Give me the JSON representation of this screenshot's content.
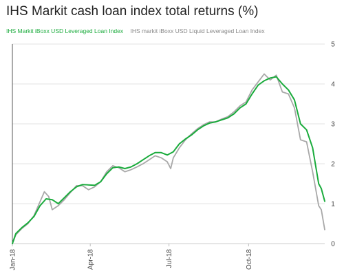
{
  "chart_data": {
    "type": "line",
    "title": "IHS Markit cash loan index total returns (%)",
    "xlabel": "",
    "ylabel": "",
    "ylim": [
      0,
      5
    ],
    "yticks": [
      "0",
      "1",
      "2",
      "3",
      "4",
      "5"
    ],
    "x_range": [
      "2018-01-01",
      "2018-12-28"
    ],
    "xticks": [
      {
        "label": "Jan-18",
        "date": "2018-01-01"
      },
      {
        "label": "Apr-18",
        "date": "2018-04-01"
      },
      {
        "label": "Jul-18",
        "date": "2018-07-01"
      },
      {
        "label": "Oct-18",
        "date": "2018-10-01"
      }
    ],
    "grid": "horizontal",
    "legend_position": "top-left",
    "series": [
      {
        "name": "IHS Markit iBoxx USD Leveraged Loan Index",
        "color": "#1aab3c",
        "points": [
          [
            "2018-01-01",
            0.0
          ],
          [
            "2018-01-05",
            0.25
          ],
          [
            "2018-01-12",
            0.4
          ],
          [
            "2018-01-19",
            0.52
          ],
          [
            "2018-01-26",
            0.68
          ],
          [
            "2018-02-02",
            0.95
          ],
          [
            "2018-02-09",
            1.12
          ],
          [
            "2018-02-16",
            1.1
          ],
          [
            "2018-02-23",
            1.0
          ],
          [
            "2018-03-02",
            1.15
          ],
          [
            "2018-03-09",
            1.3
          ],
          [
            "2018-03-16",
            1.42
          ],
          [
            "2018-03-23",
            1.48
          ],
          [
            "2018-03-30",
            1.47
          ],
          [
            "2018-04-06",
            1.46
          ],
          [
            "2018-04-13",
            1.55
          ],
          [
            "2018-04-20",
            1.75
          ],
          [
            "2018-04-27",
            1.9
          ],
          [
            "2018-05-04",
            1.92
          ],
          [
            "2018-05-11",
            1.88
          ],
          [
            "2018-05-18",
            1.92
          ],
          [
            "2018-05-25",
            2.0
          ],
          [
            "2018-06-01",
            2.1
          ],
          [
            "2018-06-08",
            2.2
          ],
          [
            "2018-06-15",
            2.28
          ],
          [
            "2018-06-22",
            2.28
          ],
          [
            "2018-06-29",
            2.22
          ],
          [
            "2018-07-06",
            2.3
          ],
          [
            "2018-07-13",
            2.5
          ],
          [
            "2018-07-20",
            2.62
          ],
          [
            "2018-07-27",
            2.72
          ],
          [
            "2018-08-03",
            2.85
          ],
          [
            "2018-08-10",
            2.95
          ],
          [
            "2018-08-17",
            3.02
          ],
          [
            "2018-08-24",
            3.05
          ],
          [
            "2018-08-31",
            3.1
          ],
          [
            "2018-09-07",
            3.15
          ],
          [
            "2018-09-14",
            3.25
          ],
          [
            "2018-09-21",
            3.4
          ],
          [
            "2018-09-28",
            3.5
          ],
          [
            "2018-10-05",
            3.75
          ],
          [
            "2018-10-12",
            3.97
          ],
          [
            "2018-10-19",
            4.08
          ],
          [
            "2018-10-26",
            4.15
          ],
          [
            "2018-11-02",
            4.18
          ],
          [
            "2018-11-09",
            4.0
          ],
          [
            "2018-11-16",
            3.85
          ],
          [
            "2018-11-23",
            3.6
          ],
          [
            "2018-11-30",
            3.0
          ],
          [
            "2018-12-07",
            2.85
          ],
          [
            "2018-12-14",
            2.4
          ],
          [
            "2018-12-21",
            1.5
          ],
          [
            "2018-12-24",
            1.38
          ],
          [
            "2018-12-28",
            1.06
          ]
        ]
      },
      {
        "name": "IHS markit iBoxx USD Liquid Leveraged Loan Index",
        "color": "#a8a8a8",
        "points": [
          [
            "2018-01-01",
            0.0
          ],
          [
            "2018-01-05",
            0.22
          ],
          [
            "2018-01-12",
            0.38
          ],
          [
            "2018-01-19",
            0.5
          ],
          [
            "2018-01-26",
            0.7
          ],
          [
            "2018-02-02",
            1.05
          ],
          [
            "2018-02-07",
            1.3
          ],
          [
            "2018-02-12",
            1.18
          ],
          [
            "2018-02-16",
            0.85
          ],
          [
            "2018-02-23",
            0.95
          ],
          [
            "2018-03-02",
            1.1
          ],
          [
            "2018-03-09",
            1.28
          ],
          [
            "2018-03-16",
            1.45
          ],
          [
            "2018-03-23",
            1.45
          ],
          [
            "2018-03-30",
            1.35
          ],
          [
            "2018-04-06",
            1.42
          ],
          [
            "2018-04-13",
            1.55
          ],
          [
            "2018-04-20",
            1.8
          ],
          [
            "2018-04-27",
            1.95
          ],
          [
            "2018-05-04",
            1.9
          ],
          [
            "2018-05-11",
            1.8
          ],
          [
            "2018-05-18",
            1.85
          ],
          [
            "2018-05-25",
            1.92
          ],
          [
            "2018-06-01",
            2.0
          ],
          [
            "2018-06-08",
            2.1
          ],
          [
            "2018-06-15",
            2.2
          ],
          [
            "2018-06-22",
            2.15
          ],
          [
            "2018-06-29",
            2.05
          ],
          [
            "2018-07-03",
            1.88
          ],
          [
            "2018-07-06",
            2.15
          ],
          [
            "2018-07-13",
            2.4
          ],
          [
            "2018-07-20",
            2.6
          ],
          [
            "2018-07-27",
            2.75
          ],
          [
            "2018-08-03",
            2.88
          ],
          [
            "2018-08-10",
            2.98
          ],
          [
            "2018-08-17",
            3.05
          ],
          [
            "2018-08-24",
            3.05
          ],
          [
            "2018-08-31",
            3.12
          ],
          [
            "2018-09-07",
            3.18
          ],
          [
            "2018-09-14",
            3.3
          ],
          [
            "2018-09-21",
            3.45
          ],
          [
            "2018-09-28",
            3.55
          ],
          [
            "2018-10-05",
            3.85
          ],
          [
            "2018-10-12",
            4.05
          ],
          [
            "2018-10-19",
            4.25
          ],
          [
            "2018-10-26",
            4.1
          ],
          [
            "2018-11-02",
            4.22
          ],
          [
            "2018-11-09",
            3.8
          ],
          [
            "2018-11-16",
            3.75
          ],
          [
            "2018-11-23",
            3.4
          ],
          [
            "2018-11-30",
            2.6
          ],
          [
            "2018-12-07",
            2.55
          ],
          [
            "2018-12-14",
            1.8
          ],
          [
            "2018-12-21",
            0.95
          ],
          [
            "2018-12-24",
            0.85
          ],
          [
            "2018-12-28",
            0.35
          ]
        ]
      }
    ]
  }
}
